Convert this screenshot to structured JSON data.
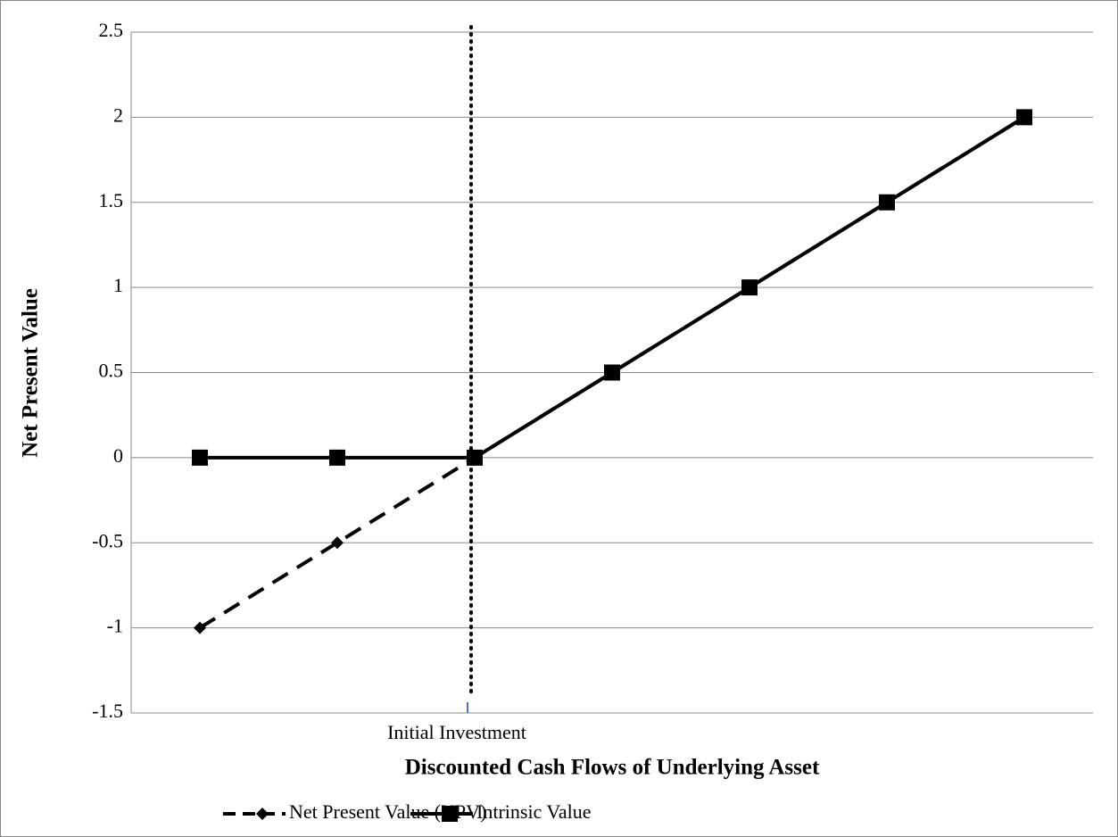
{
  "chart_data": {
    "type": "line",
    "x_label": "Discounted Cash Flows of Underlying Asset",
    "y_label": "Net Present Value",
    "categories": [
      null,
      null,
      "Initial Investment",
      null,
      null,
      null,
      null
    ],
    "series": [
      {
        "name": "Net Present Value (NPV)",
        "color": "#000000",
        "dash": "dashed",
        "marker": "diamond",
        "values": [
          -1,
          -0.5,
          0,
          0.5,
          1,
          1.5,
          2
        ]
      },
      {
        "name": "Intrinsic Value",
        "color": "#000000",
        "dash": "solid",
        "marker": "square",
        "values": [
          0,
          0,
          0,
          0.5,
          1,
          1.5,
          2
        ]
      }
    ],
    "ylim": [
      -1.5,
      2.5
    ],
    "yticks": [
      -1.5,
      -1,
      -0.5,
      0,
      0.5,
      1,
      1.5,
      2,
      2.5
    ],
    "grid": true,
    "legend": "bottom"
  }
}
